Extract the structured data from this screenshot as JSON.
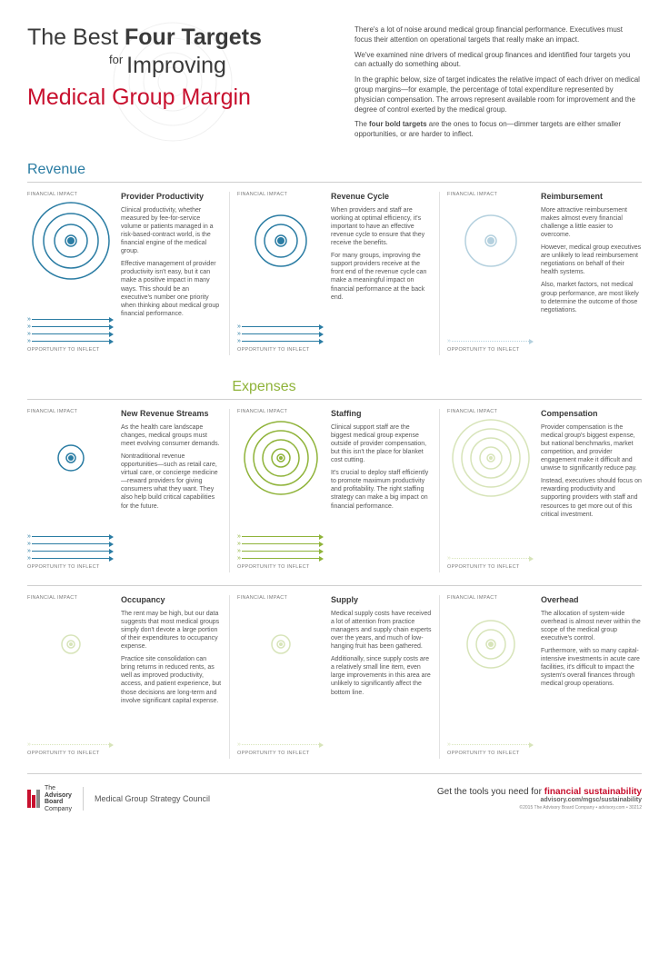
{
  "colors": {
    "blue": "#2a7ca3",
    "green": "#8fb339",
    "red": "#c8102e",
    "gray": "#888888",
    "dim_opacity": 0.35
  },
  "title": {
    "line1_pre": "The Best ",
    "line1_bold": "Four Targets",
    "line2_for": "for",
    "line2_rest": "Improving",
    "line3": "Medical Group Margin"
  },
  "intro": {
    "p1": "There's a lot of noise around medical group financial performance. Executives must focus their attention on operational targets that really make an impact.",
    "p2": "We've examined nine drivers of medical group finances and identified four targets you can actually do something about.",
    "p3": "In the graphic below, size of target indicates the relative impact of each driver on medical group margins—for example, the percentage of total expenditure represented by physician compensation. The arrows represent available room for improvement and the degree of control exerted by the medical group.",
    "p4_pre": "The ",
    "p4_bold": "four bold targets",
    "p4_post": " are the ones to focus on—dimmer targets are either smaller opportunities, or are harder to inflect."
  },
  "labels": {
    "revenue": "Revenue",
    "expenses": "Expenses",
    "financial_impact": "FINANCIAL IMPACT",
    "opportunity": "OPPORTUNITY TO INFLECT"
  },
  "targets": [
    {
      "key": "provider_productivity",
      "color": "blue",
      "bold": true,
      "rings": [
        42,
        30,
        18,
        6
      ],
      "arrows": 4,
      "arrow_style": "solid",
      "title": "Provider Productivity",
      "paras": [
        "Clinical productivity, whether measured by fee-for-service volume or patients managed in a risk-based-contract world, is the financial engine of the medical group.",
        "Effective management of provider productivity isn't easy, but it can make a positive impact in many ways. This should be an executive's number one priority when thinking about medical group financial performance."
      ]
    },
    {
      "key": "revenue_cycle",
      "color": "blue",
      "bold": true,
      "rings": [
        28,
        18,
        6
      ],
      "arrows": 3,
      "arrow_style": "solid",
      "title": "Revenue Cycle",
      "paras": [
        "When providers and staff are working at optimal efficiency, it's important to have an effective revenue cycle to ensure that they receive the benefits.",
        "For many groups, improving the support providers receive at the front end of the revenue cycle can make a meaningful impact on financial performance at the back end."
      ]
    },
    {
      "key": "reimbursement",
      "color": "blue",
      "bold": false,
      "rings": [
        28,
        6
      ],
      "arrows": 1,
      "arrow_style": "dotted",
      "title": "Reimbursement",
      "paras": [
        "More attractive reimbursement makes almost every financial challenge a little easier to overcome.",
        "However, medical group executives are unlikely to lead reimbursement negotiations on behalf of their health systems.",
        "Also, market factors, not medical group performance, are most likely to determine the outcome of those negotiations."
      ]
    },
    {
      "key": "new_revenue",
      "color": "blue",
      "bold": true,
      "rings": [
        14,
        5
      ],
      "arrows": 4,
      "arrow_style": "solid",
      "title": "New Revenue Streams",
      "paras": [
        "As the health care landscape changes, medical groups must meet evolving consumer demands.",
        "Nontraditional revenue opportunities—such as retail care, virtual care, or concierge medicine—reward providers for giving consumers what they want. They also help build critical capabilities for the future."
      ]
    },
    {
      "key": "staffing",
      "color": "green",
      "bold": true,
      "rings": [
        40,
        30,
        20,
        10,
        4
      ],
      "arrows": 4,
      "arrow_style": "solid",
      "title": "Staffing",
      "paras": [
        "Clinical support staff are the biggest medical group expense outside of provider compensation, but this isn't the place for blanket cost cutting.",
        "It's crucial to deploy staff efficiently to promote maximum productivity and profitability. The right staffing strategy can make a big impact on financial performance."
      ]
    },
    {
      "key": "compensation",
      "color": "green",
      "bold": false,
      "rings": [
        42,
        32,
        22,
        12,
        4
      ],
      "arrows": 1,
      "arrow_style": "dotted",
      "title": "Compensation",
      "paras": [
        "Provider compensation is the medical group's biggest expense, but national benchmarks, market competition, and provider engagement make it difficult and unwise to significantly reduce pay.",
        "Instead, executives should focus on rewarding productivity and supporting providers with staff and resources to get more out of this critical investment."
      ]
    },
    {
      "key": "occupancy",
      "color": "green",
      "bold": false,
      "rings": [
        10,
        4
      ],
      "arrows": 1,
      "arrow_style": "dotted",
      "title": "Occupancy",
      "paras": [
        "The rent may be high, but our data suggests that most medical groups simply don't devote a large portion of their expenditures to occupancy expense.",
        "Practice site consolidation can bring returns in reduced rents, as well as improved productivity, access, and patient experience, but those decisions are long-term and involve significant capital expense."
      ]
    },
    {
      "key": "supply",
      "color": "green",
      "bold": false,
      "rings": [
        10,
        4
      ],
      "arrows": 1,
      "arrow_style": "dotted",
      "title": "Supply",
      "paras": [
        "Medical supply costs have received a lot of attention from practice managers and supply chain experts over the years, and much of low-hanging fruit has been gathered.",
        "Additionally, since supply costs are a relatively small line item, even large improvements in this area are unlikely to significantly affect the bottom line."
      ]
    },
    {
      "key": "overhead",
      "color": "green",
      "bold": false,
      "rings": [
        26,
        16,
        5
      ],
      "arrows": 1,
      "arrow_style": "dotted",
      "title": "Overhead",
      "paras": [
        "The allocation of system-wide overhead is almost never within the scope of the medical group executive's control.",
        "Furthermore, with so many capital-intensive investments in acute care facilities, it's difficult to impact the system's overall finances through medical group operations."
      ]
    }
  ],
  "footer": {
    "logo_the": "The",
    "logo_adv": "Advisory",
    "logo_board": "Board",
    "logo_co": "Company",
    "council": "Medical Group Strategy Council",
    "cta_pre": "Get the tools you need for ",
    "cta_bold": "financial sustainability",
    "url": "advisory.com/mgsc/sustainability",
    "copyright": "©2015 The Advisory Board Company • advisory.com • 30212"
  }
}
